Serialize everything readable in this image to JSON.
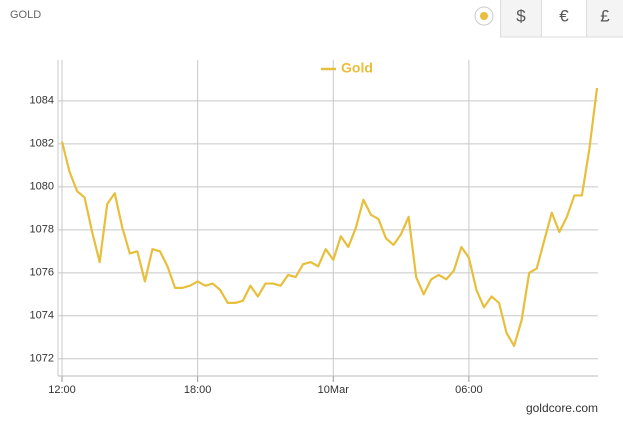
{
  "header": {
    "title": "GOLD",
    "buttons": [
      "$",
      "€",
      "£"
    ]
  },
  "chart_data": {
    "type": "line",
    "credit": "goldcore.com",
    "categories": [
      "12:00",
      null,
      null,
      null,
      null,
      null,
      null,
      null,
      null,
      null,
      null,
      null,
      null,
      null,
      null,
      null,
      null,
      null,
      "18:00",
      null,
      null,
      null,
      null,
      null,
      null,
      null,
      null,
      null,
      null,
      null,
      null,
      null,
      null,
      null,
      null,
      null,
      "10Mar",
      null,
      null,
      null,
      null,
      null,
      null,
      null,
      null,
      null,
      null,
      null,
      null,
      null,
      null,
      null,
      null,
      null,
      "06:00",
      null,
      null,
      null,
      null,
      null,
      null,
      null,
      null,
      null,
      null,
      null,
      null,
      null,
      null,
      null,
      null,
      null
    ],
    "series": [
      {
        "name": "Gold",
        "color": "#e8bf3c",
        "values": [
          1082.1,
          1080.7,
          1079.8,
          1079.5,
          1077.9,
          1076.5,
          1079.2,
          1079.7,
          1078.1,
          1076.9,
          1077.0,
          1075.6,
          1077.1,
          1077.0,
          1076.3,
          1075.3,
          1075.3,
          1075.4,
          1075.6,
          1075.4,
          1075.5,
          1075.2,
          1074.6,
          1074.6,
          1074.7,
          1075.4,
          1074.9,
          1075.5,
          1075.5,
          1075.4,
          1075.9,
          1075.8,
          1076.4,
          1076.5,
          1076.3,
          1077.1,
          1076.6,
          1077.7,
          1077.2,
          1078.1,
          1079.4,
          1078.7,
          1078.5,
          1077.6,
          1077.3,
          1077.8,
          1078.6,
          1075.8,
          1075.0,
          1075.7,
          1075.9,
          1075.7,
          1076.1,
          1077.2,
          1076.7,
          1075.2,
          1074.4,
          1074.9,
          1074.6,
          1073.2,
          1072.6,
          1073.8,
          1076.0,
          1076.2,
          1077.5,
          1078.8,
          1077.9,
          1078.6,
          1079.6,
          1079.6,
          1081.8,
          1084.6
        ]
      }
    ],
    "ylim": [
      1071.2,
      1085.9
    ],
    "yticks": [
      1072,
      1074,
      1076,
      1078,
      1080,
      1082,
      1084
    ],
    "grid": true
  }
}
